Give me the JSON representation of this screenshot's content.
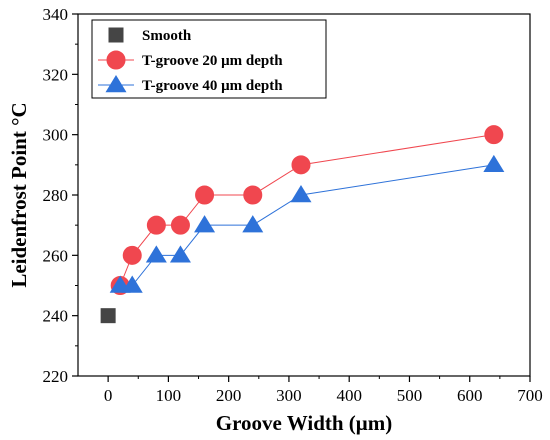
{
  "chart_data": {
    "type": "scatter",
    "xlabel": "Groove Width (μm)",
    "ylabel": "Leidenfrost Point °C",
    "xlim": [
      -50,
      700
    ],
    "ylim": [
      220,
      340
    ],
    "xticks": [
      0,
      100,
      200,
      300,
      400,
      500,
      600,
      700
    ],
    "yticks": [
      220,
      240,
      260,
      280,
      300,
      320,
      340
    ],
    "xtick_labels": [
      "0",
      "100",
      "200",
      "300",
      "400",
      "500",
      "600",
      "700"
    ],
    "ytick_labels": [
      "220",
      "240",
      "260",
      "280",
      "300",
      "320",
      "340"
    ],
    "grid": false,
    "legend_position": "top-left",
    "series": [
      {
        "name": "Smooth",
        "marker": "square",
        "color": "#454545",
        "line": false,
        "x": [
          0
        ],
        "y": [
          240
        ]
      },
      {
        "name": "T-groove 20 μm depth",
        "marker": "circle",
        "color": "#f0474f",
        "line": true,
        "x": [
          20,
          40,
          80,
          120,
          160,
          240,
          320,
          640
        ],
        "y": [
          250,
          260,
          270,
          270,
          280,
          280,
          290,
          300
        ]
      },
      {
        "name": "T-groove 40 μm depth",
        "marker": "triangle",
        "color": "#2e72d9",
        "line": true,
        "x": [
          20,
          40,
          80,
          120,
          160,
          240,
          320,
          640
        ],
        "y": [
          250,
          250,
          260,
          260,
          270,
          270,
          280,
          290
        ]
      }
    ]
  }
}
